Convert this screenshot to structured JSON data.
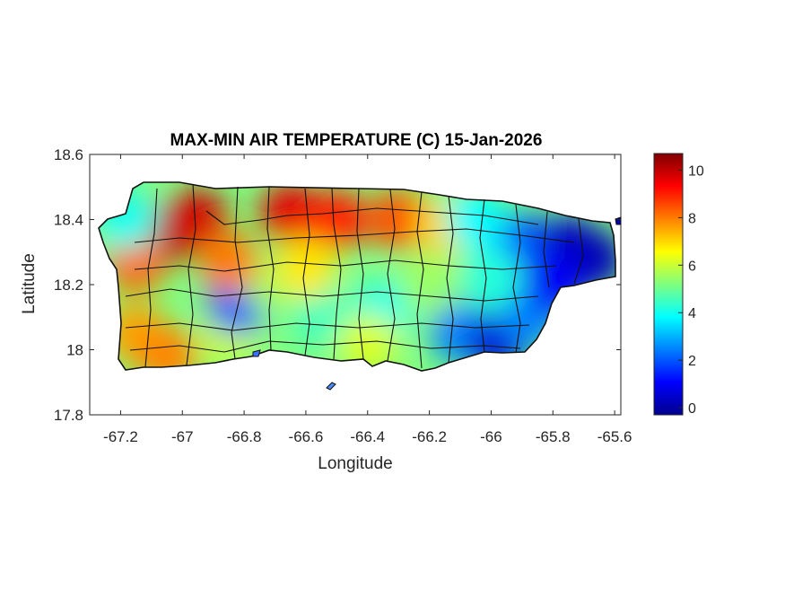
{
  "chart_data": {
    "type": "heatmap",
    "title": "MAX-MIN AIR TEMPERATURE (C) 15-Jan-2026",
    "xlabel": "Longitude",
    "ylabel": "Latitude",
    "xlim": [
      -67.3,
      -65.58
    ],
    "ylim": [
      17.8,
      18.6
    ],
    "xticks": [
      -67.2,
      -67,
      -66.8,
      -66.6,
      -66.4,
      -66.2,
      -66,
      -65.8,
      -65.6
    ],
    "xtick_labels": [
      "-67.2",
      "-67",
      "-66.8",
      "-66.6",
      "-66.4",
      "-66.2",
      "-66",
      "-65.8",
      "-65.6"
    ],
    "yticks": [
      17.8,
      18,
      18.2,
      18.4,
      18.6
    ],
    "ytick_labels": [
      "17.8",
      "18",
      "18.2",
      "18.4",
      "18.6"
    ],
    "colorbar": {
      "colormap": "jet",
      "range": [
        -0.3,
        10.7
      ],
      "ticks": [
        0,
        2,
        4,
        6,
        8,
        10
      ],
      "tick_labels": [
        "0",
        "2",
        "4",
        "6",
        "8",
        "10"
      ]
    },
    "region": "Puerto Rico",
    "field_hotspots": [
      {
        "lon": -67.05,
        "lat": 18.36,
        "value": 10.3
      },
      {
        "lon": -66.95,
        "lat": 18.4,
        "value": 9.8
      },
      {
        "lon": -66.65,
        "lat": 18.42,
        "value": 9.6
      },
      {
        "lon": -66.5,
        "lat": 18.4,
        "value": 9.0
      },
      {
        "lon": -66.3,
        "lat": 18.4,
        "value": 8.5
      },
      {
        "lon": -66.15,
        "lat": 18.38,
        "value": 7.0
      },
      {
        "lon": -67.15,
        "lat": 18.27,
        "value": 8.2
      },
      {
        "lon": -67.15,
        "lat": 18.05,
        "value": 7.6
      },
      {
        "lon": -67.05,
        "lat": 17.98,
        "value": 7.9
      },
      {
        "lon": -66.85,
        "lat": 18.04,
        "value": 6.0
      },
      {
        "lon": -66.82,
        "lat": 18.14,
        "value": 2.0
      },
      {
        "lon": -66.7,
        "lat": 18.2,
        "value": 5.5
      },
      {
        "lon": -66.55,
        "lat": 18.1,
        "value": 4.5
      },
      {
        "lon": -66.35,
        "lat": 18.12,
        "value": 4.0
      },
      {
        "lon": -66.4,
        "lat": 18.02,
        "value": 6.2
      },
      {
        "lon": -66.2,
        "lat": 18.2,
        "value": 5.5
      },
      {
        "lon": -66.1,
        "lat": 18.05,
        "value": 2.5
      },
      {
        "lon": -65.98,
        "lat": 18.02,
        "value": 0.6
      },
      {
        "lon": -65.88,
        "lat": 18.1,
        "value": 2.5
      },
      {
        "lon": -65.9,
        "lat": 18.33,
        "value": 2.0
      },
      {
        "lon": -65.75,
        "lat": 18.32,
        "value": 0.5
      },
      {
        "lon": -65.67,
        "lat": 18.28,
        "value": 0.3
      },
      {
        "lon": -65.8,
        "lat": 18.2,
        "value": 1.0
      },
      {
        "lon": -66.0,
        "lat": 18.22,
        "value": 4.2
      },
      {
        "lon": -66.05,
        "lat": 18.4,
        "value": 3.8
      },
      {
        "lon": -66.6,
        "lat": 18.25,
        "value": 6.8
      },
      {
        "lon": -66.85,
        "lat": 18.27,
        "value": 8.0
      },
      {
        "lon": -67.18,
        "lat": 18.4,
        "value": 4.0
      }
    ]
  }
}
